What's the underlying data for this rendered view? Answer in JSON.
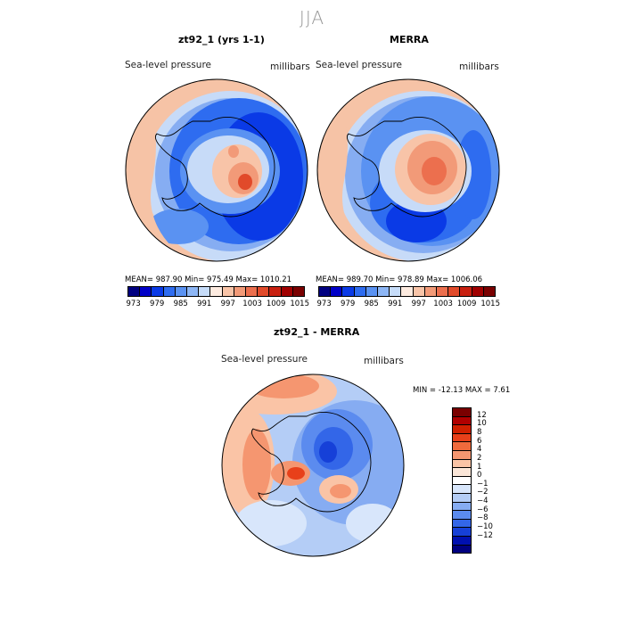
{
  "season": "JJA",
  "panels": [
    {
      "title": "zt92_1 (yrs 1-1)",
      "variable": "Sea-level pressure",
      "units": "millibars",
      "stats": "MEAN= 987.90   Min= 975.49   Max= 1010.21"
    },
    {
      "title": "MERRA",
      "variable": "Sea-level pressure",
      "units": "millibars",
      "stats": "MEAN= 989.70   Min= 978.89   Max= 1006.06"
    },
    {
      "title": "zt92_1 - MERRA",
      "variable": "Sea-level pressure",
      "units": "millibars",
      "stats": "MIN = -12.13  MAX =    7.61"
    }
  ],
  "colorbar_top": {
    "colors": [
      "#000080",
      "#0000c8",
      "#0a3ae6",
      "#2e6cf0",
      "#5a92f2",
      "#8db6f5",
      "#c6dcf9",
      "#fdebe0",
      "#f8c4a8",
      "#f29a78",
      "#ec6f4e",
      "#e14a2a",
      "#c82010",
      "#a00000",
      "#7a0000"
    ],
    "labels": [
      "973",
      "979",
      "985",
      "991",
      "997",
      "1003",
      "1009",
      "1015"
    ]
  },
  "colorbar_diff": {
    "colors": [
      "#7a0000",
      "#b00000",
      "#d02000",
      "#e8401a",
      "#f06a3c",
      "#f59670",
      "#fac4a6",
      "#fbe6d8",
      "#ffffff",
      "#d8e6fb",
      "#b4cdf6",
      "#86acf2",
      "#5b8bef",
      "#3366e8",
      "#1640d8",
      "#0010b0",
      "#000080"
    ],
    "labels": [
      "12",
      "10",
      "8",
      "6",
      "4",
      "2",
      "1",
      "0",
      "−1",
      "−2",
      "−4",
      "−6",
      "−8",
      "−10",
      "−12"
    ]
  }
}
